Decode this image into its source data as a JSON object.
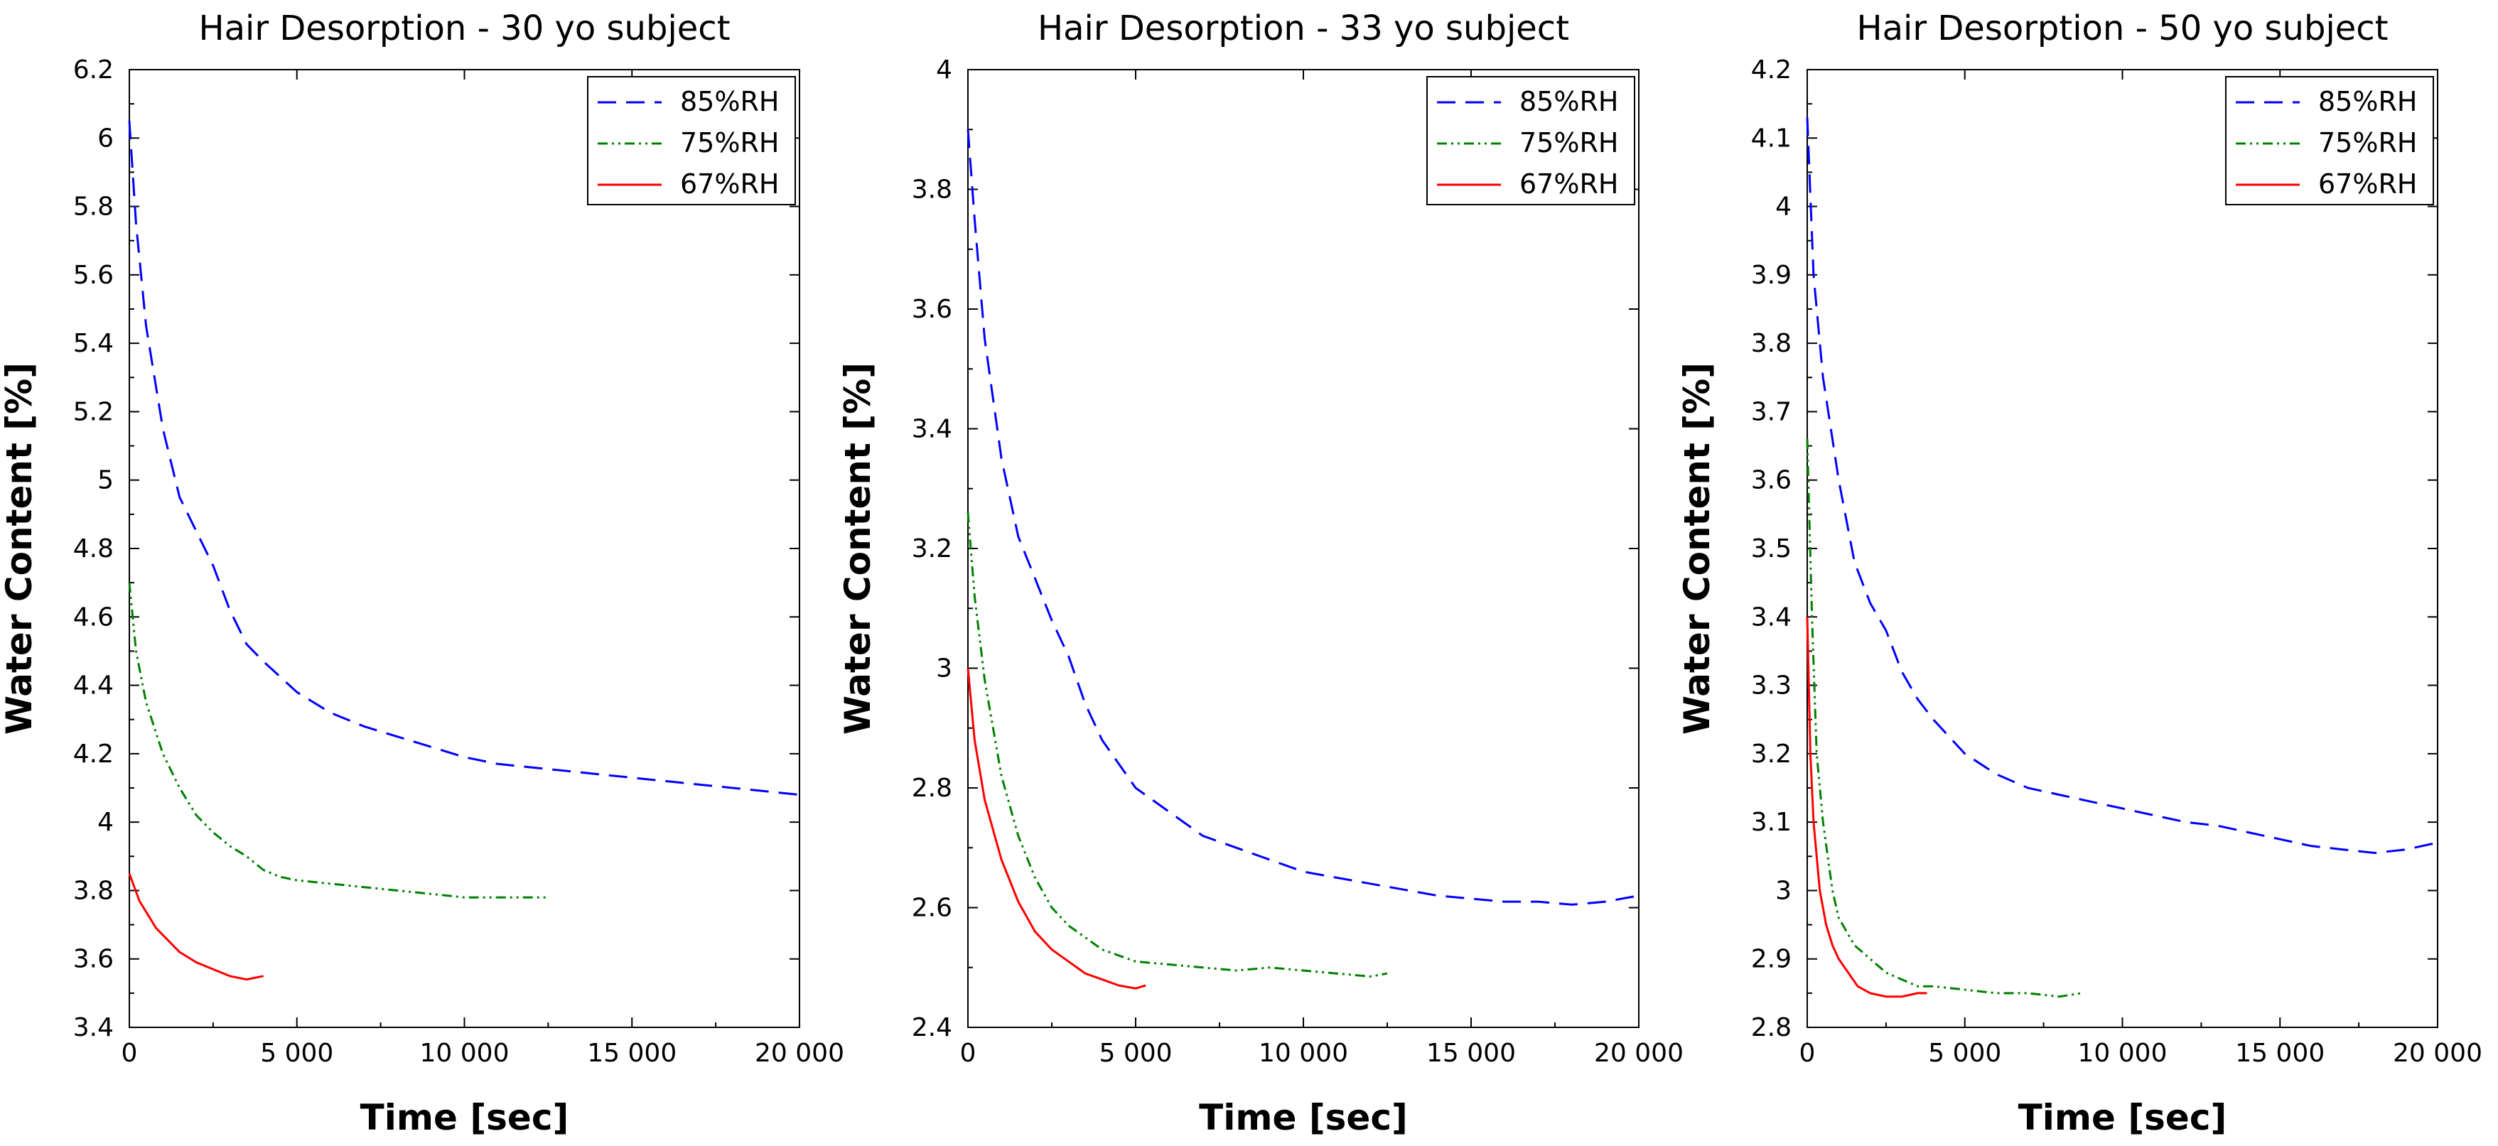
{
  "chart_data": [
    {
      "type": "line",
      "title": "Hair Desorption -  30 yo subject",
      "xlabel": "Time [sec]",
      "ylabel": "Water Content [%]",
      "xlim": [
        0,
        20000
      ],
      "ylim": [
        3.4,
        6.2
      ],
      "xticks": [
        0,
        5000,
        10000,
        15000,
        20000
      ],
      "xtick_labels": [
        "0",
        "5 000",
        "10 000",
        "15 000",
        "20 000"
      ],
      "yticks": [
        3.4,
        3.6,
        3.8,
        4,
        4.2,
        4.4,
        4.6,
        4.8,
        5,
        5.2,
        5.4,
        5.6,
        5.8,
        6,
        6.2
      ],
      "ytick_labels": [
        "3.4",
        "3.6",
        "3.8",
        "4",
        "4.2",
        "4.4",
        "4.6",
        "4.8",
        "5",
        "5.2",
        "5.4",
        "5.6",
        "5.8",
        "6",
        "6.2"
      ],
      "legend_position": "top-right",
      "series": [
        {
          "name": "85%RH",
          "color": "#0000ff",
          "style": "dashed",
          "x": [
            0,
            200,
            500,
            1000,
            1500,
            2000,
            2500,
            3000,
            3500,
            4000,
            5000,
            6000,
            7000,
            8000,
            9000,
            10000,
            11000,
            12000,
            13000,
            14000,
            15000,
            16000,
            17000,
            18000,
            19000,
            20000
          ],
          "y": [
            6.05,
            5.75,
            5.45,
            5.15,
            4.95,
            4.85,
            4.75,
            4.62,
            4.52,
            4.47,
            4.38,
            4.32,
            4.28,
            4.25,
            4.22,
            4.19,
            4.17,
            4.16,
            4.15,
            4.14,
            4.13,
            4.12,
            4.11,
            4.1,
            4.09,
            4.08
          ]
        },
        {
          "name": "75%RH",
          "color": "#008000",
          "style": "dash-dot",
          "x": [
            0,
            200,
            500,
            1000,
            1500,
            2000,
            2500,
            3000,
            3500,
            4000,
            4500,
            5000,
            6000,
            7000,
            8000,
            9000,
            10000,
            11000,
            12000,
            12500
          ],
          "y": [
            4.7,
            4.5,
            4.35,
            4.2,
            4.1,
            4.02,
            3.97,
            3.93,
            3.9,
            3.86,
            3.84,
            3.83,
            3.82,
            3.81,
            3.8,
            3.79,
            3.78,
            3.78,
            3.78,
            3.78
          ]
        },
        {
          "name": "67%RH",
          "color": "#ff0000",
          "style": "solid",
          "x": [
            0,
            300,
            800,
            1500,
            2000,
            2500,
            3000,
            3500,
            4000
          ],
          "y": [
            3.85,
            3.77,
            3.69,
            3.62,
            3.59,
            3.57,
            3.55,
            3.54,
            3.55
          ]
        }
      ]
    },
    {
      "type": "line",
      "title": "Hair Desorption - 33 yo subject",
      "xlabel": "Time [sec]",
      "ylabel": "Water Content [%]",
      "xlim": [
        0,
        20000
      ],
      "ylim": [
        2.4,
        4
      ],
      "xticks": [
        0,
        5000,
        10000,
        15000,
        20000
      ],
      "xtick_labels": [
        "0",
        "5 000",
        "10 000",
        "15 000",
        "20 000"
      ],
      "yticks": [
        2.4,
        2.6,
        2.8,
        3,
        3.2,
        3.4,
        3.6,
        3.8,
        4
      ],
      "ytick_labels": [
        "2.4",
        "2.6",
        "2.8",
        "3",
        "3.2",
        "3.4",
        "3.6",
        "3.8",
        "4"
      ],
      "legend_position": "top-right",
      "series": [
        {
          "name": "85%RH",
          "color": "#0000ff",
          "style": "dashed",
          "x": [
            0,
            200,
            500,
            1000,
            1500,
            2000,
            2500,
            3000,
            3500,
            4000,
            5000,
            6000,
            7000,
            8000,
            9000,
            10000,
            11000,
            12000,
            13000,
            14000,
            15000,
            16000,
            17000,
            18000,
            19000,
            20000
          ],
          "y": [
            3.9,
            3.75,
            3.55,
            3.35,
            3.22,
            3.15,
            3.08,
            3.02,
            2.94,
            2.88,
            2.8,
            2.76,
            2.72,
            2.7,
            2.68,
            2.66,
            2.65,
            2.64,
            2.63,
            2.62,
            2.615,
            2.61,
            2.61,
            2.605,
            2.61,
            2.62
          ]
        },
        {
          "name": "75%RH",
          "color": "#008000",
          "style": "dash-dot",
          "x": [
            0,
            200,
            500,
            1000,
            1500,
            2000,
            2500,
            3000,
            3500,
            4000,
            5000,
            6000,
            7000,
            8000,
            9000,
            10000,
            11000,
            12000,
            12500
          ],
          "y": [
            3.26,
            3.12,
            2.98,
            2.82,
            2.72,
            2.65,
            2.6,
            2.57,
            2.55,
            2.53,
            2.51,
            2.505,
            2.5,
            2.495,
            2.5,
            2.495,
            2.49,
            2.485,
            2.49
          ]
        },
        {
          "name": "67%RH",
          "color": "#ff0000",
          "style": "solid",
          "x": [
            0,
            200,
            500,
            1000,
            1500,
            2000,
            2500,
            3000,
            3500,
            4000,
            4500,
            5000,
            5300
          ],
          "y": [
            3.0,
            2.88,
            2.78,
            2.68,
            2.61,
            2.56,
            2.53,
            2.51,
            2.49,
            2.48,
            2.47,
            2.465,
            2.47
          ]
        }
      ]
    },
    {
      "type": "line",
      "title": "Hair Desorption - 50 yo subject",
      "xlabel": "Time [sec]",
      "ylabel": "Water Content [%]",
      "xlim": [
        0,
        20000
      ],
      "ylim": [
        2.8,
        4.2
      ],
      "xticks": [
        0,
        5000,
        10000,
        15000,
        20000
      ],
      "xtick_labels": [
        "0",
        "5 000",
        "10 000",
        "15 000",
        "20 000"
      ],
      "yticks": [
        2.8,
        2.9,
        3,
        3.1,
        3.2,
        3.3,
        3.4,
        3.5,
        3.6,
        3.7,
        3.8,
        3.9,
        4,
        4.1,
        4.2
      ],
      "ytick_labels": [
        "2.8",
        "2.9",
        "3",
        "3.1",
        "3.2",
        "3.3",
        "3.4",
        "3.5",
        "3.6",
        "3.7",
        "3.8",
        "3.9",
        "4",
        "4.1",
        "4.2"
      ],
      "legend_position": "top-right",
      "series": [
        {
          "name": "85%RH",
          "color": "#0000ff",
          "style": "dashed",
          "x": [
            0,
            200,
            500,
            1000,
            1500,
            2000,
            2500,
            3000,
            3500,
            4000,
            5000,
            6000,
            7000,
            8000,
            9000,
            10000,
            11000,
            12000,
            13000,
            14000,
            15000,
            16000,
            17000,
            18000,
            19000,
            20000
          ],
          "y": [
            4.13,
            3.9,
            3.75,
            3.6,
            3.48,
            3.42,
            3.38,
            3.32,
            3.28,
            3.25,
            3.2,
            3.17,
            3.15,
            3.14,
            3.13,
            3.12,
            3.11,
            3.1,
            3.095,
            3.085,
            3.075,
            3.065,
            3.06,
            3.055,
            3.06,
            3.07
          ]
        },
        {
          "name": "75%RH",
          "color": "#008000",
          "style": "dash-dot",
          "x": [
            0,
            150,
            300,
            500,
            800,
            1000,
            1500,
            2000,
            2500,
            3000,
            3500,
            4000,
            5000,
            6000,
            7000,
            8000,
            8700
          ],
          "y": [
            3.66,
            3.4,
            3.2,
            3.1,
            3.0,
            2.96,
            2.92,
            2.9,
            2.88,
            2.87,
            2.86,
            2.86,
            2.855,
            2.85,
            2.85,
            2.845,
            2.85
          ]
        },
        {
          "name": "67%RH",
          "color": "#ff0000",
          "style": "solid",
          "x": [
            0,
            100,
            200,
            400,
            600,
            800,
            1000,
            1300,
            1600,
            2000,
            2500,
            3000,
            3500,
            3800
          ],
          "y": [
            3.4,
            3.2,
            3.1,
            3.0,
            2.95,
            2.92,
            2.9,
            2.88,
            2.86,
            2.85,
            2.845,
            2.845,
            2.85,
            2.85
          ]
        }
      ]
    }
  ]
}
